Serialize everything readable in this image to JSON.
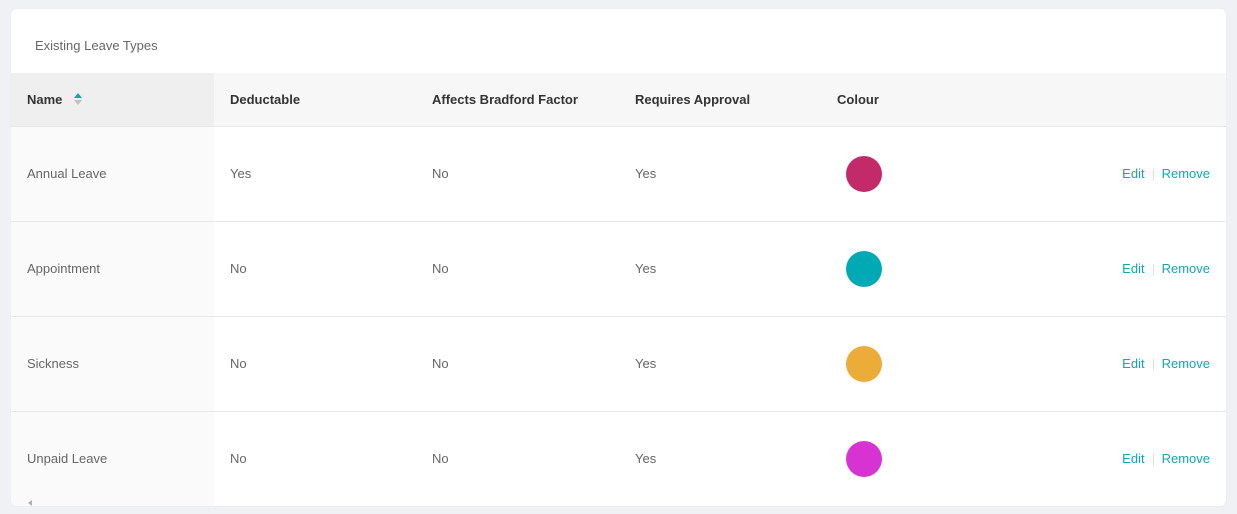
{
  "card": {
    "title": "Existing Leave Types"
  },
  "table": {
    "columns": [
      "Name",
      "Deductable",
      "Affects Bradford Factor",
      "Requires Approval",
      "Colour"
    ],
    "sorted_column": "Name",
    "sort_direction": "ascending",
    "rows": [
      {
        "name": "Annual Leave",
        "deductable": "Yes",
        "bradford": "No",
        "approval": "Yes",
        "colour": "#c22a6a",
        "edit": "Edit",
        "remove": "Remove"
      },
      {
        "name": "Appointment",
        "deductable": "No",
        "bradford": "No",
        "approval": "Yes",
        "colour": "#01a9b4",
        "edit": "Edit",
        "remove": "Remove"
      },
      {
        "name": "Sickness",
        "deductable": "No",
        "bradford": "No",
        "approval": "Yes",
        "colour": "#ecac39",
        "edit": "Edit",
        "remove": "Remove"
      },
      {
        "name": "Unpaid Leave",
        "deductable": "No",
        "bradford": "No",
        "approval": "Yes",
        "colour": "#d633d2",
        "edit": "Edit",
        "remove": "Remove"
      }
    ]
  },
  "colors": {
    "accent": "#13a6ae"
  },
  "icons": {
    "sort": "sort-caret-icon"
  }
}
